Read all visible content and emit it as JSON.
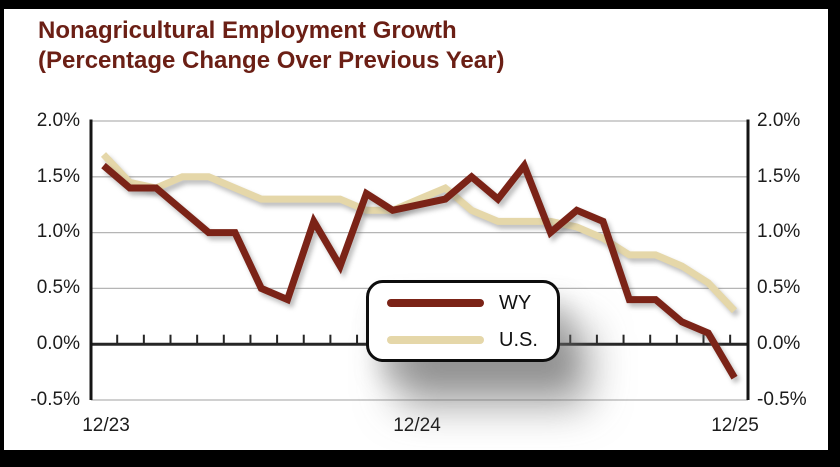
{
  "title": {
    "line1": "Nonagricultural Employment Growth",
    "line2": "(Percentage Change Over Previous Year)"
  },
  "colors": {
    "title_text": "#6b1f15",
    "wy_line": "#7b2317",
    "us_line": "#e5d7a9",
    "gridline": "#b5b5b5",
    "axis": "#141414",
    "zero_line": "#262626",
    "frame": "#000000",
    "background": "#ffffff"
  },
  "chart_data": {
    "type": "line",
    "title": "Nonagricultural Employment Growth (Percentage Change Over Previous Year)",
    "xlabel": "",
    "ylabel": "",
    "grid": true,
    "ylim": [
      -0.5,
      2.0
    ],
    "legend_position": "inside-bottom-center",
    "categories": [
      "12/23",
      "1/24",
      "2/24",
      "3/24",
      "4/24",
      "5/24",
      "6/24",
      "7/24",
      "8/24",
      "9/24",
      "10/24",
      "11/24",
      "12/24",
      "1/25",
      "2/25",
      "3/25",
      "4/25",
      "5/25",
      "6/25",
      "7/25",
      "8/25",
      "9/25",
      "10/25",
      "11/25",
      "12/25"
    ],
    "x_axis_labels": [
      {
        "label": "12/23",
        "index": 0
      },
      {
        "label": "12/24",
        "index": 12
      },
      {
        "label": "12/25",
        "index": 24
      }
    ],
    "yticks": [
      {
        "label": "2.0%",
        "value": 2.0
      },
      {
        "label": "1.5%",
        "value": 1.5
      },
      {
        "label": "1.0%",
        "value": 1.0
      },
      {
        "label": "0.5%",
        "value": 0.5
      },
      {
        "label": "0.0%",
        "value": 0.0
      },
      {
        "label": "-0.5%",
        "value": -0.5
      }
    ],
    "series": [
      {
        "name": "WY",
        "color": "#7b2317",
        "values": [
          1.6,
          1.4,
          1.4,
          1.2,
          1.0,
          1.0,
          0.5,
          0.4,
          1.1,
          0.7,
          1.35,
          1.2,
          1.25,
          1.3,
          1.5,
          1.3,
          1.6,
          1.0,
          1.2,
          1.1,
          0.4,
          0.4,
          0.2,
          0.1,
          -0.3
        ]
      },
      {
        "name": "U.S.",
        "color": "#e5d7a9",
        "values": [
          1.7,
          1.45,
          1.4,
          1.5,
          1.5,
          1.4,
          1.3,
          1.3,
          1.3,
          1.3,
          1.2,
          1.2,
          1.3,
          1.4,
          1.2,
          1.1,
          1.1,
          1.1,
          1.05,
          0.95,
          0.8,
          0.8,
          0.7,
          0.55,
          0.3
        ]
      }
    ]
  }
}
